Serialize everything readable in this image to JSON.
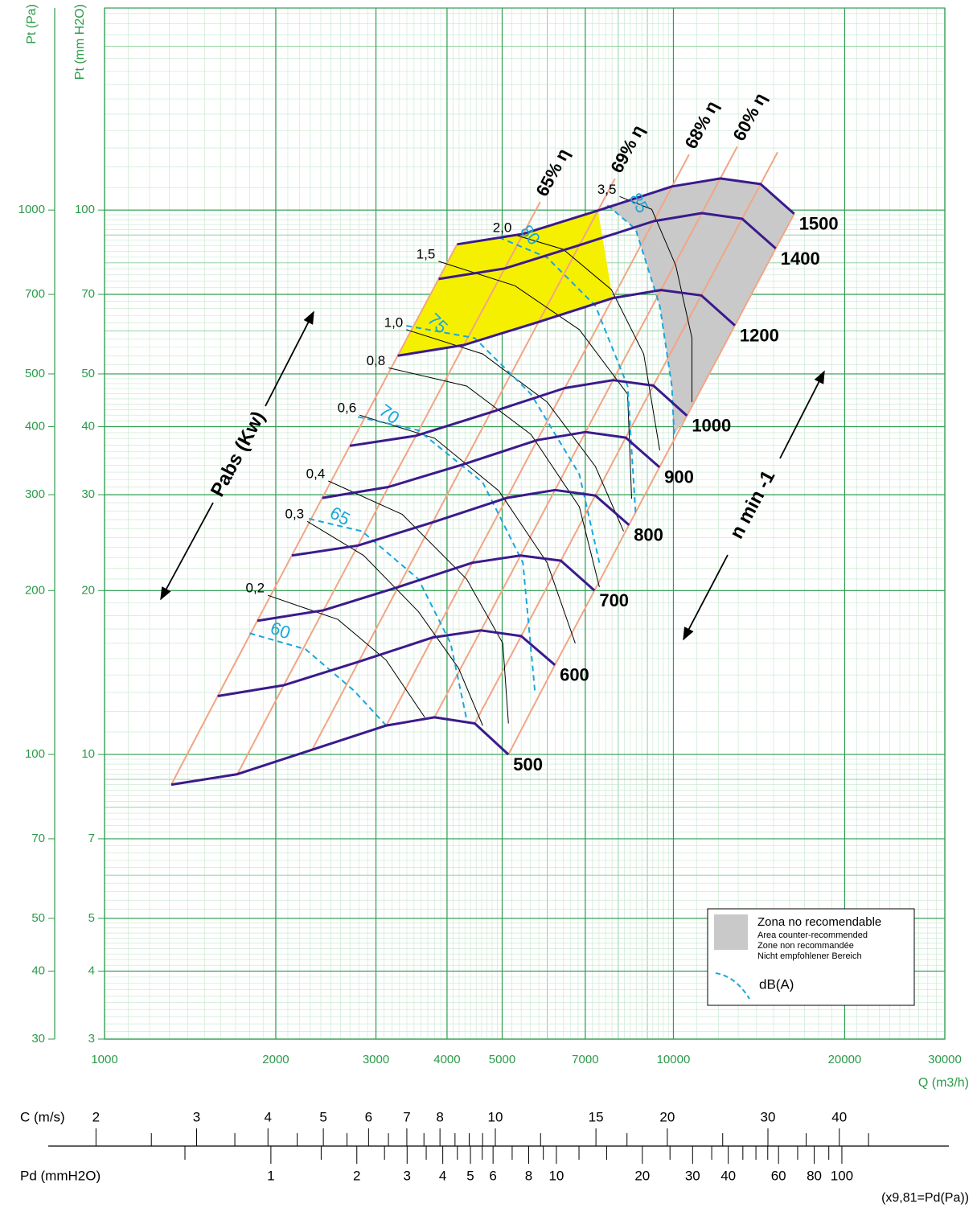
{
  "chart_data": {
    "type": "line",
    "x_scale": "log",
    "y_scale": "log",
    "xlabel": "Q (m3/h)",
    "ylabel": "Pt (mm H2O)",
    "y2label": "Pt (Pa)",
    "xlim": [
      1000,
      30000
    ],
    "xticks": [
      1000,
      2000,
      3000,
      4000,
      5000,
      7000,
      10000,
      20000,
      30000
    ],
    "ylim": [
      3,
      235
    ],
    "yticks": [
      3,
      4,
      5,
      7,
      10,
      20,
      30,
      40,
      50,
      70,
      100
    ],
    "y2lim": [
      30,
      2350
    ],
    "y2ticks": [
      30,
      40,
      50,
      70,
      100,
      200,
      300,
      400,
      500,
      700,
      1000
    ],
    "grid": true,
    "series": [
      {
        "name": "500",
        "color": "#3b1a8c",
        "x": [
          1310,
          1712,
          2317,
          3128,
          3802,
          4475,
          5128
        ],
        "values": [
          8.8,
          9.2,
          10.2,
          11.3,
          11.7,
          11.4,
          10.0
        ]
      },
      {
        "name": "600",
        "color": "#3b1a8c",
        "x": [
          1581,
          2066,
          2797,
          3776,
          4589,
          5401,
          6190
        ],
        "values": [
          12.8,
          13.4,
          14.8,
          16.4,
          16.9,
          16.5,
          14.6
        ]
      },
      {
        "name": "700",
        "color": "#3b1a8c",
        "x": [
          1856,
          2426,
          3283,
          4432,
          5387,
          6341,
          7266
        ],
        "values": [
          17.6,
          18.4,
          20.3,
          22.5,
          23.2,
          22.7,
          20.0
        ]
      },
      {
        "name": "800",
        "color": "#3b1a8c",
        "x": [
          2134,
          2789,
          3774,
          5095,
          6193,
          7290,
          8354
        ],
        "values": [
          23.2,
          24.2,
          26.7,
          29.6,
          30.6,
          29.9,
          26.4
        ]
      },
      {
        "name": "900",
        "color": "#3b1a8c",
        "x": [
          2414,
          3155,
          4270,
          5765,
          7007,
          8247,
          9451
        ],
        "values": [
          29.6,
          31.0,
          34.1,
          37.8,
          39.1,
          38.2,
          33.7
        ]
      },
      {
        "name": "1000",
        "color": "#3b1a8c",
        "x": [
          2699,
          3527,
          4773,
          6444,
          7832,
          9219,
          10564
        ],
        "values": [
          36.9,
          38.5,
          42.5,
          47.1,
          48.7,
          47.6,
          41.9
        ]
      },
      {
        "name": "1200",
        "color": "#3b1a8c",
        "x": [
          3276,
          4282,
          5795,
          7823,
          9509,
          11192,
          12825
        ],
        "values": [
          54.0,
          56.5,
          62.3,
          68.9,
          71.3,
          69.7,
          61.4
        ]
      },
      {
        "name": "1400",
        "color": "#3b1a8c",
        "x": [
          3866,
          5052,
          6837,
          9231,
          11220,
          13206,
          15133
        ],
        "values": [
          74.7,
          78.1,
          86.2,
          95.4,
          98.7,
          96.4,
          85.0
        ]
      },
      {
        "name": "1500",
        "color": "#3b1a8c",
        "x": [
          4166,
          5444,
          7368,
          9947,
          12090,
          14231,
          16307
        ],
        "values": [
          86.5,
          90.4,
          99.8,
          110.5,
          114.3,
          111.6,
          98.4
        ]
      }
    ],
    "efficiency_labels": [
      "65% η",
      "69% η",
      "68% η",
      "60% η"
    ],
    "efficiency_color": "#f2a585",
    "power_lines": {
      "name": "Pabs (Kw)",
      "color": "#000000",
      "lines": [
        {
          "name": "0,2",
          "x": [
            1937,
            2572,
            3126,
            3655
          ],
          "values": [
            19.6,
            17.7,
            14.9,
            11.7
          ]
        },
        {
          "name": "0,3",
          "x": [
            2272,
            2854,
            3562,
            4192,
            4622
          ],
          "values": [
            26.8,
            23.2,
            18.3,
            14.4,
            11.3
          ]
        },
        {
          "name": "0,4",
          "x": [
            2474,
            3337,
            4330,
            5013,
            5129
          ],
          "values": [
            31.8,
            27.6,
            21.0,
            16.0,
            11.4
          ]
        },
        {
          "name": "0,6",
          "x": [
            2808,
            3802,
            4932,
            5997,
            6722
          ],
          "values": [
            42.0,
            38.1,
            30.5,
            22.5,
            16.0
          ]
        },
        {
          "name": "0,8",
          "x": [
            3157,
            4330,
            5619,
            6833,
            7412
          ],
          "values": [
            51.3,
            47.5,
            38.7,
            28.5,
            20.3
          ]
        },
        {
          "name": "1,0",
          "x": [
            3392,
            4622,
            5997,
            7292,
            8174
          ],
          "values": [
            60.3,
            54.4,
            44.4,
            33.8,
            25.7
          ]
        },
        {
          "name": "1,5",
          "x": [
            3864,
            5265,
            6833,
            8309,
            8445
          ],
          "values": [
            80.5,
            72.6,
            60.3,
            45.9,
            29.5
          ]
        },
        {
          "name": "2,0",
          "x": [
            5265,
            6402,
            7783,
            8866,
            9463
          ],
          "values": [
            90.0,
            84.7,
            71.4,
            54.4,
            36.2
          ]
        },
        {
          "name": "3,5",
          "x": [
            8041,
            9159,
            10097,
            10778,
            10778
          ],
          "values": [
            105.9,
            100.3,
            79.1,
            58.2,
            44.4
          ]
        }
      ]
    },
    "db_lines": {
      "name": "dB(A)",
      "color": "#1ba6dc",
      "lines": [
        {
          "name": "60",
          "x": [
            1798,
            2257,
            2745,
            3126
          ],
          "values": [
            16.7,
            15.6,
            13.1,
            11.3
          ]
        },
        {
          "name": "65",
          "x": [
            2287,
            2836,
            3562,
            4058,
            4330
          ],
          "values": [
            27.1,
            25.7,
            21.0,
            16.0,
            11.6
          ]
        },
        {
          "name": "70",
          "x": [
            2790,
            3562,
            4622,
            5439,
            5710
          ],
          "values": [
            41.7,
            39.4,
            31.6,
            22.5,
            13.0
          ]
        },
        {
          "name": "75",
          "x": [
            3392,
            4473,
            5619,
            6833,
            7412
          ],
          "values": [
            61.3,
            58.2,
            45.9,
            32.7,
            22.5
          ]
        },
        {
          "name": "80",
          "x": [
            4932,
            5997,
            7292,
            8309,
            8584
          ],
          "values": [
            89.1,
            81.8,
            66.7,
            47.5,
            27.6
          ]
        },
        {
          "name": "85",
          "x": [
            7656,
            8584,
            9463,
            9936,
            10032
          ],
          "values": [
            102.1,
            92.2,
            66.7,
            47.5,
            38.7
          ]
        }
      ]
    },
    "zones": {
      "recommended_color": "#f5f000",
      "not_recommended_color": "#c9c9c9"
    },
    "speed_label": "n  min -1",
    "legend": {
      "title": "Zona no recomendable",
      "lines": [
        "Area counter-recommended",
        "Zone non recommandée",
        "Nicht empfohlener Bereich"
      ]
    },
    "legend_position": "lower right"
  },
  "scales": {
    "c": {
      "label": "C (m/s)",
      "lim": [
        1.65,
        62.2
      ],
      "ticks": [
        2,
        3,
        4,
        5,
        6,
        7,
        8,
        10,
        15,
        20,
        30,
        40
      ],
      "minor_ticks": [
        2.5,
        3.5,
        4.5,
        5.5,
        6.5,
        7.5,
        8.5,
        9,
        9.5,
        12,
        17,
        25,
        35,
        45
      ]
    },
    "pd": {
      "label": "Pd (mmH2O)",
      "lim": [
        0.166,
        237
      ],
      "ticks": [
        1,
        2,
        3,
        4,
        5,
        6,
        8,
        10,
        20,
        30,
        40,
        60,
        80,
        100
      ],
      "minor_ticks": [
        0.5,
        1.5,
        2.5,
        3.5,
        4.5,
        5.5,
        7,
        9,
        12,
        15,
        25,
        35,
        45,
        50,
        55,
        70,
        90
      ]
    },
    "note": "(x9,81=Pd(Pa))"
  }
}
